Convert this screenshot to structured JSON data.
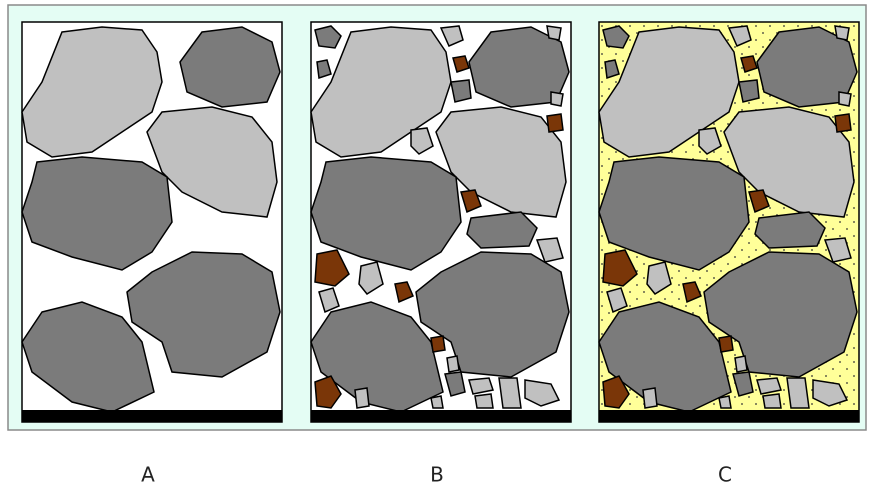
{
  "labels": [
    "A",
    "B",
    "C"
  ]
}
